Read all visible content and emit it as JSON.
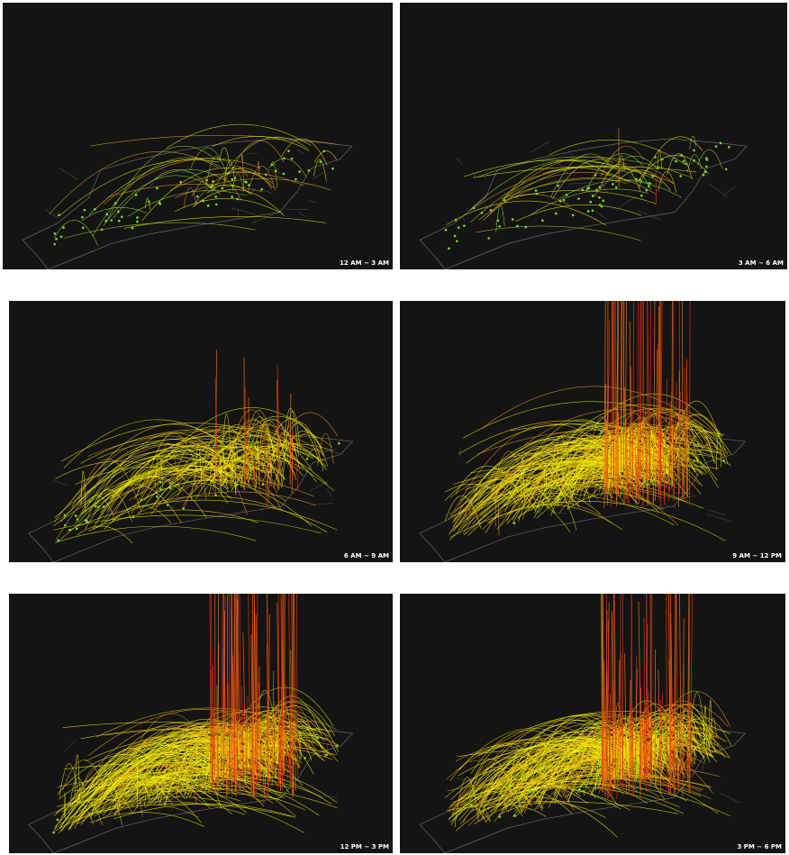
{
  "panels": [
    {
      "label": "12 AM ~ 3 AM"
    },
    {
      "label": "3 AM ~ 6 AM"
    },
    {
      "label": "6 AM ~ 9 AM"
    },
    {
      "label": "9 AM ~ 12 PM"
    },
    {
      "label": "12 PM ~ 3 PM"
    },
    {
      "label": "3 PM ~ 6 PM"
    }
  ]
}
